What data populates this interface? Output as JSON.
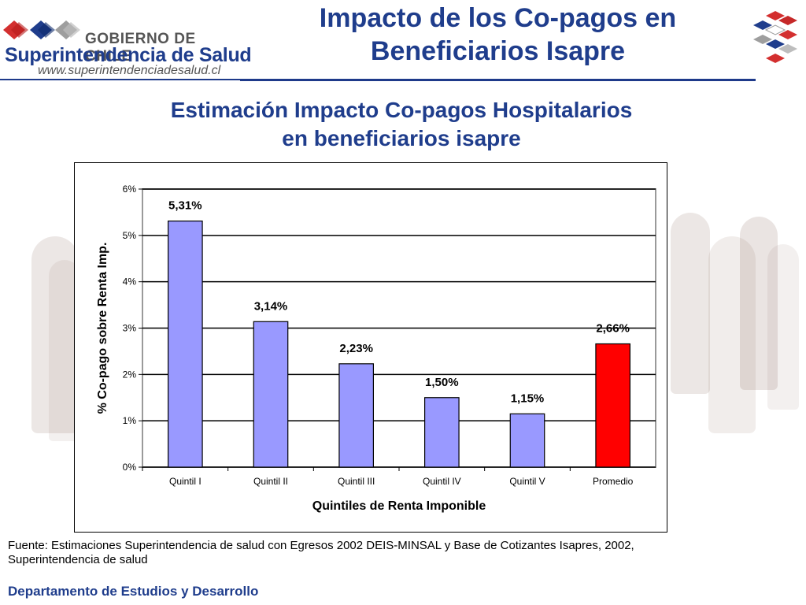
{
  "header": {
    "government": "GOBIERNO DE CHILE",
    "agency": "Superintendencia de Salud",
    "url": "www.superintendenciadesalud.cl",
    "title_line1": "Impacto de los Co-pagos en",
    "title_line2": "Beneficiarios Isapre",
    "logo_colors": [
      "#d32f2f",
      "#1f3d8c",
      "#9e9e9e"
    ]
  },
  "subtitle": {
    "line1": "Estimación Impacto Co-pagos Hospitalarios",
    "line2": "en beneficiarios isapre"
  },
  "chart_data": {
    "type": "bar",
    "ylabel": "% Co-pago sobre Renta Imp.",
    "xlabel": "Quintiles de Renta Imponible",
    "categories": [
      "Quintil I",
      "Quintil II",
      "Quintil III",
      "Quintil IV",
      "Quintil V",
      "Promedio"
    ],
    "values": [
      5.31,
      3.14,
      2.23,
      1.5,
      1.15,
      2.66
    ],
    "data_labels": [
      "5,31%",
      "3,14%",
      "2,23%",
      "1,50%",
      "1,15%",
      "2,66%"
    ],
    "yticks": [
      "0%",
      "1%",
      "2%",
      "3%",
      "4%",
      "5%",
      "6%"
    ],
    "ylim": [
      0,
      6
    ],
    "grid": true,
    "bar_color": "#9999ff",
    "highlight_color": "#ff0000",
    "highlight_index": 5
  },
  "footer": {
    "source_line1": "Fuente: Estimaciones Superintendencia de salud con Egresos 2002 DEIS-MINSAL y Base de Cotizantes Isapres, 2002,",
    "source_line2": "Superintendencia de salud",
    "department": "Departamento de Estudios y Desarrollo"
  }
}
